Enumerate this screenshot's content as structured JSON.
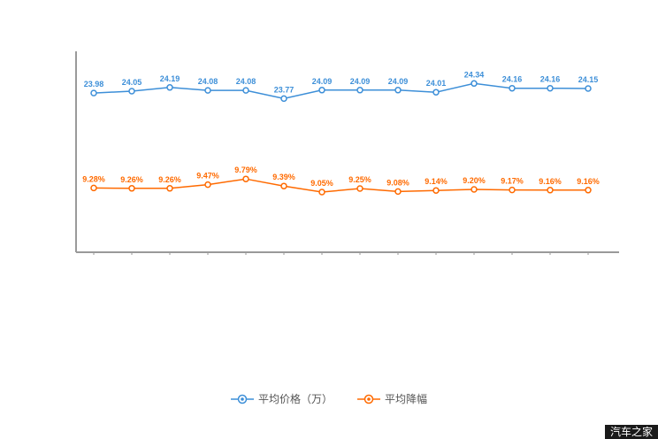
{
  "watermark": "汽车之家",
  "legend": {
    "items": [
      {
        "label": "平均价格（万）",
        "color": "#3d8fd8"
      },
      {
        "label": "平均降幅",
        "color": "#ff6a00"
      }
    ]
  },
  "chart_data": {
    "type": "line",
    "title": "",
    "xlabel": "",
    "ylabel": "",
    "legend_position": "bottom",
    "grid": false,
    "x_tick_labels_visible": false,
    "axis_color": "#9a9a9a",
    "series": [
      {
        "name": "平均价格（万）",
        "color": "#3d8fd8",
        "values": [
          23.98,
          24.05,
          24.19,
          24.08,
          24.08,
          23.77,
          24.09,
          24.09,
          24.09,
          24.01,
          24.34,
          24.16,
          24.16,
          24.15
        ],
        "labels": [
          "23.98",
          "24.05",
          "24.19",
          "24.08",
          "24.08",
          "23.77",
          "24.09",
          "24.09",
          "24.09",
          "24.01",
          "24.34",
          "24.16",
          "24.16",
          "24.15"
        ]
      },
      {
        "name": "平均降幅",
        "color": "#ff6a00",
        "values": [
          9.28,
          9.26,
          9.26,
          9.47,
          9.79,
          9.39,
          9.05,
          9.25,
          9.08,
          9.14,
          9.2,
          9.17,
          9.16,
          9.16
        ],
        "labels": [
          "9.28%",
          "9.26%",
          "9.26%",
          "9.47%",
          "9.79%",
          "9.39%",
          "9.05%",
          "9.25%",
          "9.08%",
          "9.14%",
          "9.20%",
          "9.17%",
          "9.16%",
          "9.16%"
        ]
      }
    ]
  }
}
